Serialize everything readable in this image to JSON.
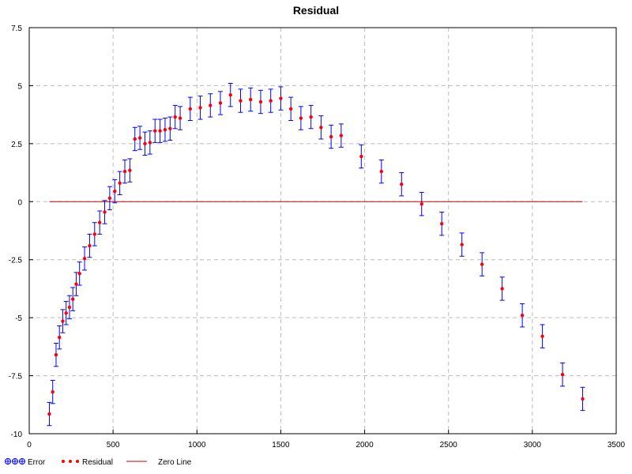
{
  "chart_data": {
    "type": "scatter",
    "title": "Residual",
    "xlabel": "",
    "ylabel": "",
    "xlim": [
      0,
      3500
    ],
    "ylim": [
      -10,
      7.5
    ],
    "xticks": [
      0,
      500,
      1000,
      1500,
      2000,
      2500,
      3000,
      3500
    ],
    "yticks": [
      -10,
      -7.5,
      -5,
      -2.5,
      0,
      2.5,
      5,
      7.5
    ],
    "xtick_labels": [
      "0",
      "500",
      "1000",
      "1500",
      "2000",
      "2500",
      "3000",
      "3500"
    ],
    "ytick_labels": [
      "-10",
      "-7.5",
      "-5",
      "-2.5",
      "0",
      "2.5",
      "5",
      "7.5"
    ],
    "grid": true,
    "legend_position": "bottom-left",
    "series": [
      {
        "name": "Residual",
        "color": "#ff0000",
        "error_color": "#0000ff",
        "error_half_width": 0.5,
        "x": [
          120,
          140,
          160,
          180,
          200,
          220,
          240,
          260,
          280,
          300,
          330,
          360,
          390,
          420,
          450,
          480,
          510,
          540,
          570,
          600,
          630,
          660,
          690,
          720,
          750,
          780,
          810,
          840,
          870,
          900,
          960,
          1020,
          1080,
          1140,
          1200,
          1260,
          1320,
          1380,
          1440,
          1500,
          1560,
          1620,
          1680,
          1740,
          1800,
          1860,
          1980,
          2100,
          2220,
          2340,
          2460,
          2580,
          2700,
          2820,
          2940,
          3060,
          3180,
          3300
        ],
        "y": [
          -9.15,
          -8.2,
          -6.6,
          -5.85,
          -5.15,
          -4.8,
          -4.55,
          -4.2,
          -3.55,
          -3.1,
          -2.45,
          -1.9,
          -1.4,
          -0.9,
          -0.45,
          0.15,
          0.45,
          0.8,
          1.3,
          1.35,
          2.7,
          2.75,
          2.5,
          2.55,
          3.05,
          3.05,
          3.1,
          3.15,
          3.65,
          3.6,
          4.0,
          4.05,
          4.15,
          4.25,
          4.6,
          4.35,
          4.4,
          4.3,
          4.35,
          4.45,
          4.0,
          3.6,
          3.65,
          3.2,
          2.8,
          2.85,
          1.95,
          1.3,
          0.75,
          -0.1,
          -0.95,
          -1.85,
          -2.7,
          -3.75,
          -4.9,
          -5.8,
          -7.45,
          -8.5
        ]
      },
      {
        "name": "Zero Line",
        "color": "#cc0000",
        "x": [
          120,
          3300
        ],
        "y": [
          0,
          0
        ]
      }
    ],
    "legend": [
      {
        "label": "Error",
        "kind": "error"
      },
      {
        "label": "Residual",
        "kind": "dots"
      },
      {
        "label": "Zero Line",
        "kind": "line"
      }
    ]
  }
}
